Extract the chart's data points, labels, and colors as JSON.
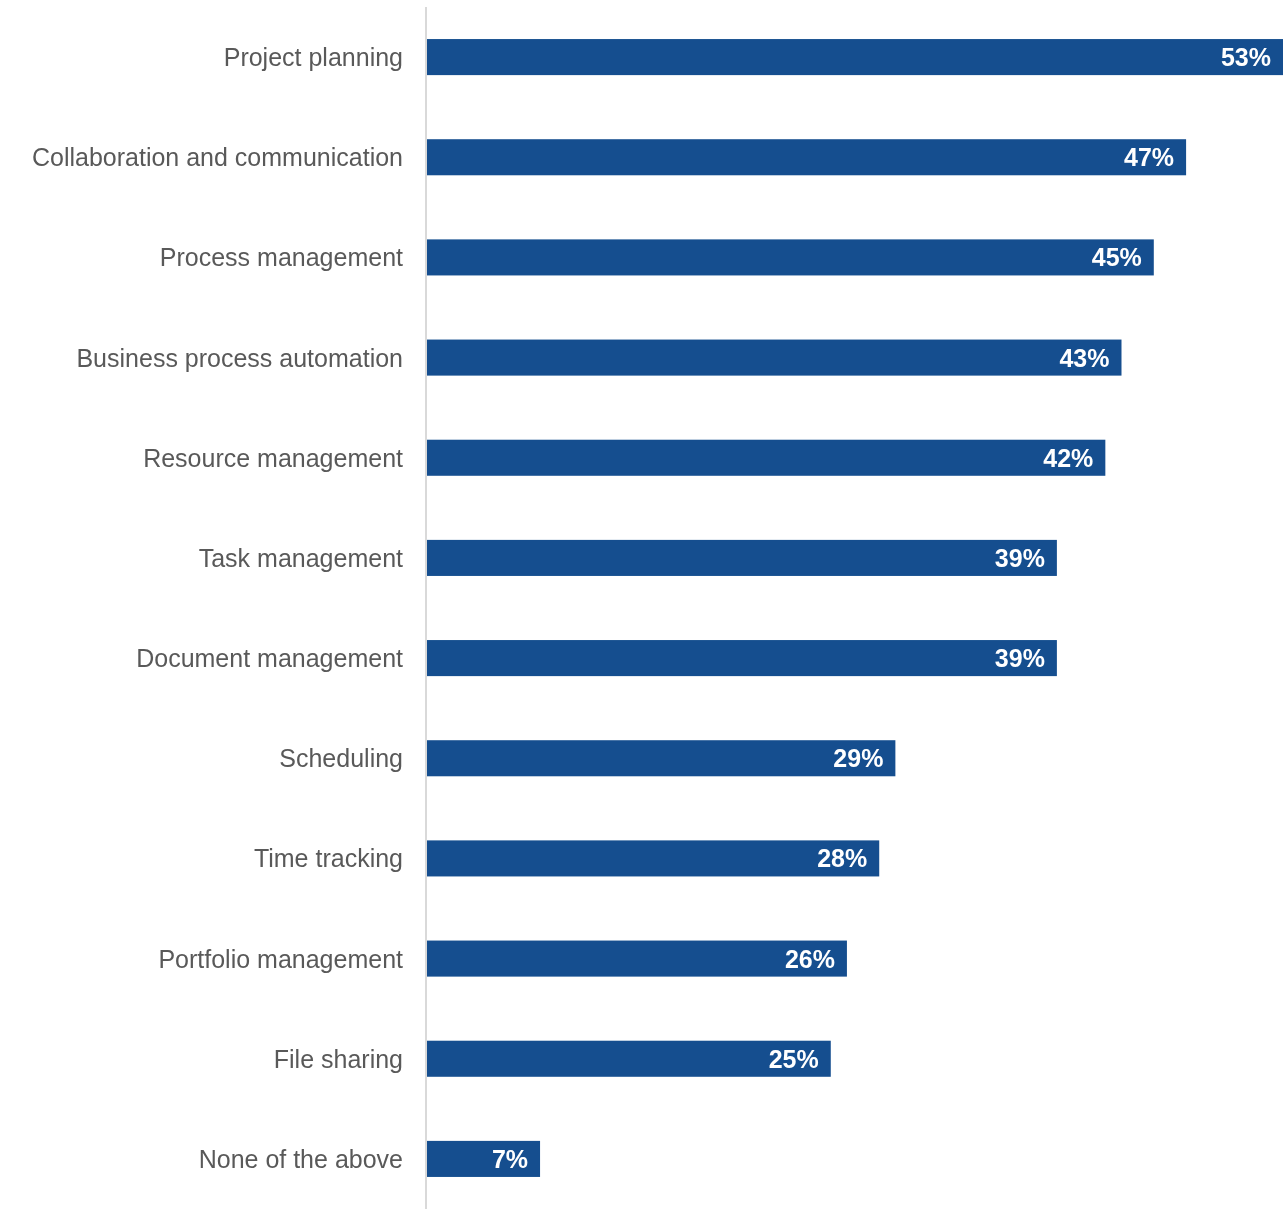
{
  "chart_data": {
    "type": "bar",
    "orientation": "horizontal",
    "categories": [
      "Project planning",
      "Collaboration and communication",
      "Process management",
      "Business process automation",
      "Resource management",
      "Task management",
      "Document management",
      "Scheduling",
      "Time tracking",
      "Portfolio management",
      "File sharing",
      "None of the above"
    ],
    "values": [
      53,
      47,
      45,
      43,
      42,
      39,
      39,
      29,
      28,
      26,
      25,
      7
    ],
    "value_labels": [
      "53%",
      "47%",
      "45%",
      "43%",
      "42%",
      "39%",
      "39%",
      "29%",
      "28%",
      "26%",
      "25%",
      "7%"
    ],
    "color": "#154e8f"
  }
}
